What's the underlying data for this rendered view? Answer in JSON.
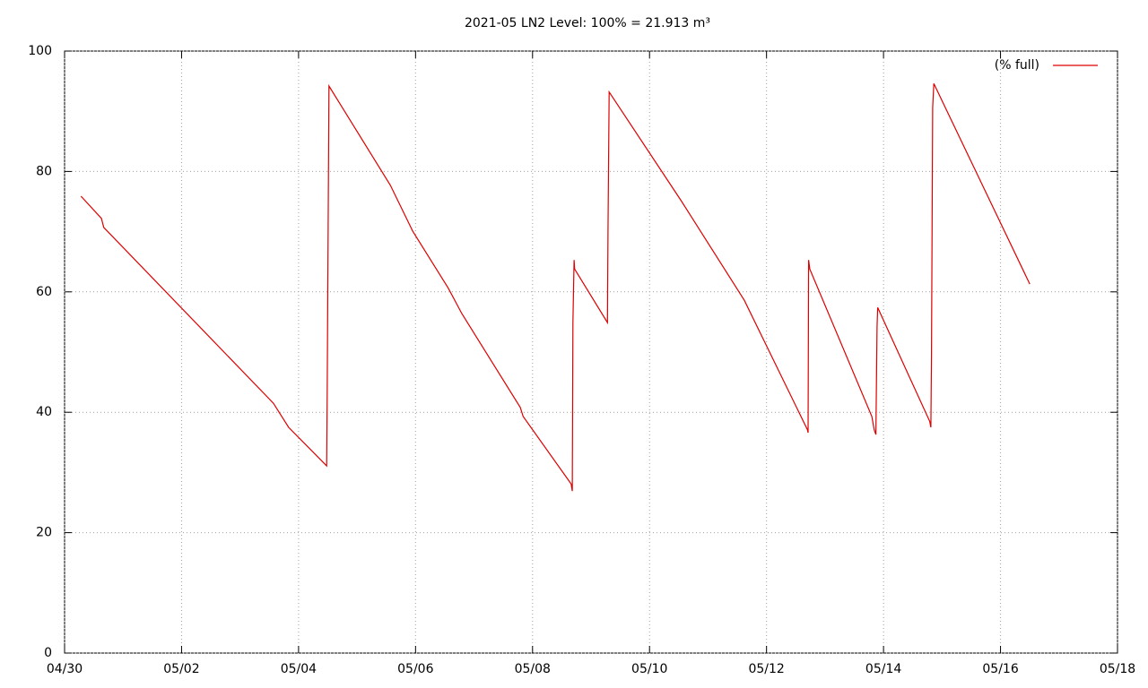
{
  "chart_data": {
    "type": "line",
    "title": "2021-05 LN2 Level: 100% = 21.913 m³",
    "x": [
      0.28,
      0.63,
      0.67,
      3.57,
      3.83,
      4.48,
      4.49,
      4.51,
      4.52,
      5.57,
      5.95,
      6.56,
      6.79,
      7.79,
      7.84,
      8.66,
      8.68,
      8.69,
      8.71,
      8.72,
      9.28,
      9.29,
      9.31,
      10.55,
      11.62,
      12.7,
      12.71,
      12.72,
      12.74,
      13.8,
      13.84,
      13.87,
      13.89,
      13.9,
      14.79,
      14.81,
      14.82,
      14.84,
      14.86,
      16.5
    ],
    "series": [
      {
        "name": "(% full)",
        "color": "#dd0000",
        "values": [
          75.9,
          72.2,
          70.7,
          41.5,
          37.5,
          31.1,
          42.6,
          78.7,
          94.2,
          77.7,
          70.1,
          60.6,
          56.4,
          40.8,
          39.3,
          28.1,
          26.9,
          54.9,
          65.3,
          63.8,
          54.9,
          69.8,
          93.2,
          75.0,
          58.6,
          37.1,
          36.6,
          65.3,
          63.8,
          39.3,
          37.1,
          36.3,
          54.2,
          57.4,
          38.5,
          37.5,
          49.7,
          90.6,
          94.6,
          61.3
        ]
      }
    ],
    "xlim": [
      0,
      18
    ],
    "xticks": [
      {
        "value": 0,
        "label": "04/30"
      },
      {
        "value": 2,
        "label": "05/02"
      },
      {
        "value": 4,
        "label": "05/04"
      },
      {
        "value": 6,
        "label": "05/06"
      },
      {
        "value": 8,
        "label": "05/08"
      },
      {
        "value": 10,
        "label": "05/10"
      },
      {
        "value": 12,
        "label": "05/12"
      },
      {
        "value": 14,
        "label": "05/14"
      },
      {
        "value": 16,
        "label": "05/16"
      },
      {
        "value": 18,
        "label": "05/18"
      }
    ],
    "ylim": [
      0,
      100
    ],
    "yticks": [
      0,
      20,
      40,
      60,
      80,
      100
    ],
    "grid": true,
    "legend": "top-right"
  }
}
